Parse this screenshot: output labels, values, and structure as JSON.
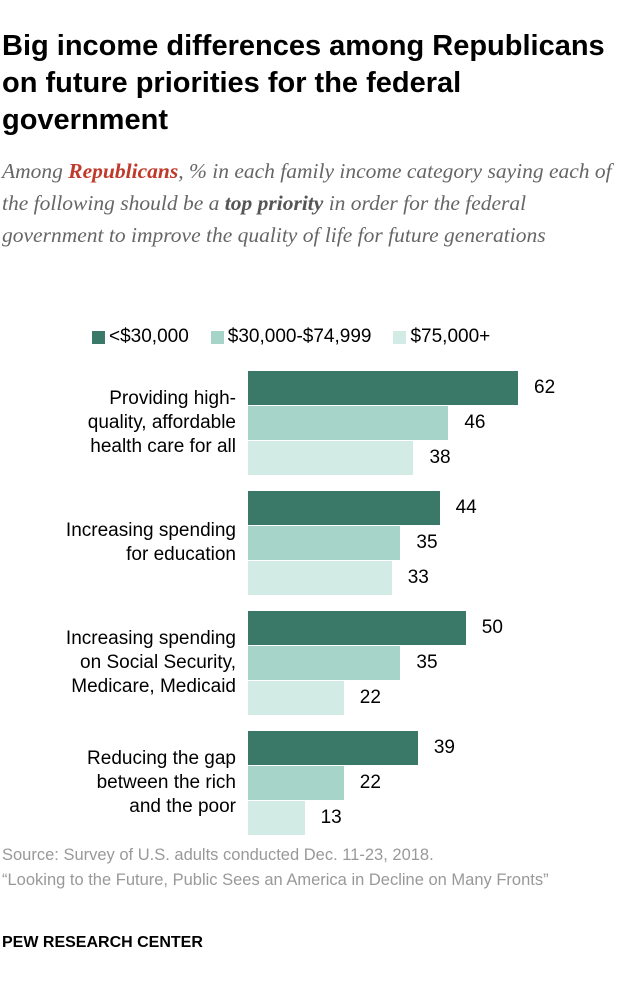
{
  "title": "Big income differences among Republicans on future priorities for the federal government",
  "subtitle": {
    "pre": "Among ",
    "highlight": "Republicans",
    "mid": ", % in each family income category saying each of the following should be a ",
    "bold": "top priority",
    "post": " in order for the federal government to improve the quality of life for future generations"
  },
  "colors": {
    "accent": "#c0392b",
    "low": "#3a7868",
    "mid": "#a6d4c8",
    "high": "#d3ebe5"
  },
  "chart_data": {
    "type": "bar",
    "orientation": "horizontal",
    "categories": [
      "Providing high-quality, affordable health care for all",
      "Increasing spending for education",
      "Increasing spending on Social Security, Medicare, Medicaid",
      "Reducing the gap between the rich and the poor"
    ],
    "category_lines": [
      [
        "Providing high-",
        "quality, affordable",
        "health care for all"
      ],
      [
        "Increasing spending",
        "for education"
      ],
      [
        "Increasing spending",
        "on Social Security,",
        "Medicare, Medicaid"
      ],
      [
        "Reducing the gap",
        "between the rich",
        "and the poor"
      ]
    ],
    "series": [
      {
        "name": "<$30,000",
        "color": "#3a7868",
        "values": [
          62,
          44,
          50,
          39
        ]
      },
      {
        "name": "$30,000-$74,999",
        "color": "#a6d4c8",
        "values": [
          46,
          35,
          35,
          22
        ]
      },
      {
        "name": "$75,000+",
        "color": "#d3ebe5",
        "values": [
          38,
          33,
          22,
          13
        ]
      }
    ],
    "legend": "top",
    "grid": false
  },
  "source": "Source: Survey of U.S. adults conducted Dec. 11-23, 2018.",
  "report": "“Looking to the Future, Public Sees an America in Decline on Many Fronts”",
  "org": "PEW RESEARCH CENTER"
}
